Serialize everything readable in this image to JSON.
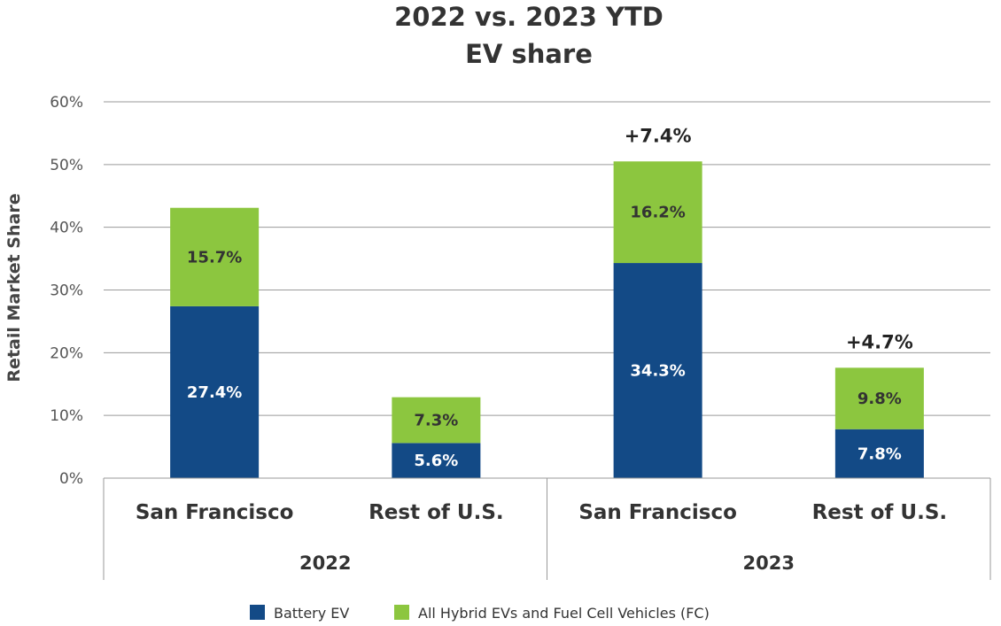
{
  "chart_data": {
    "type": "bar",
    "stacked": true,
    "title_lines": [
      "2022 vs. 2023 YTD",
      "EV share"
    ],
    "ylabel": "Retail Market Share",
    "ylim": [
      0,
      60
    ],
    "yticks": [
      "0%",
      "10%",
      "20%",
      "30%",
      "40%",
      "50%",
      "60%"
    ],
    "grid": true,
    "groups": [
      {
        "label": "2022",
        "categories": [
          "San Francisco",
          "Rest of U.S."
        ]
      },
      {
        "label": "2023",
        "categories": [
          "San Francisco",
          "Rest of U.S."
        ]
      }
    ],
    "series": [
      {
        "name": "Battery EV",
        "color": "#134a86",
        "label_color": "#ffffff",
        "values": [
          27.4,
          5.6,
          34.3,
          7.8
        ],
        "labels": [
          "27.4%",
          "5.6%",
          "34.3%",
          "7.8%"
        ]
      },
      {
        "name": "All Hybrid EVs and Fuel Cell Vehicles (FC)",
        "color": "#8cc63f",
        "label_color": "#333333",
        "values": [
          15.7,
          7.3,
          16.2,
          9.8
        ],
        "labels": [
          "15.7%",
          "7.3%",
          "16.2%",
          "9.8%"
        ]
      }
    ],
    "annotations": [
      "",
      "",
      "+7.4%",
      "+4.7%"
    ],
    "legend_position": "bottom"
  }
}
